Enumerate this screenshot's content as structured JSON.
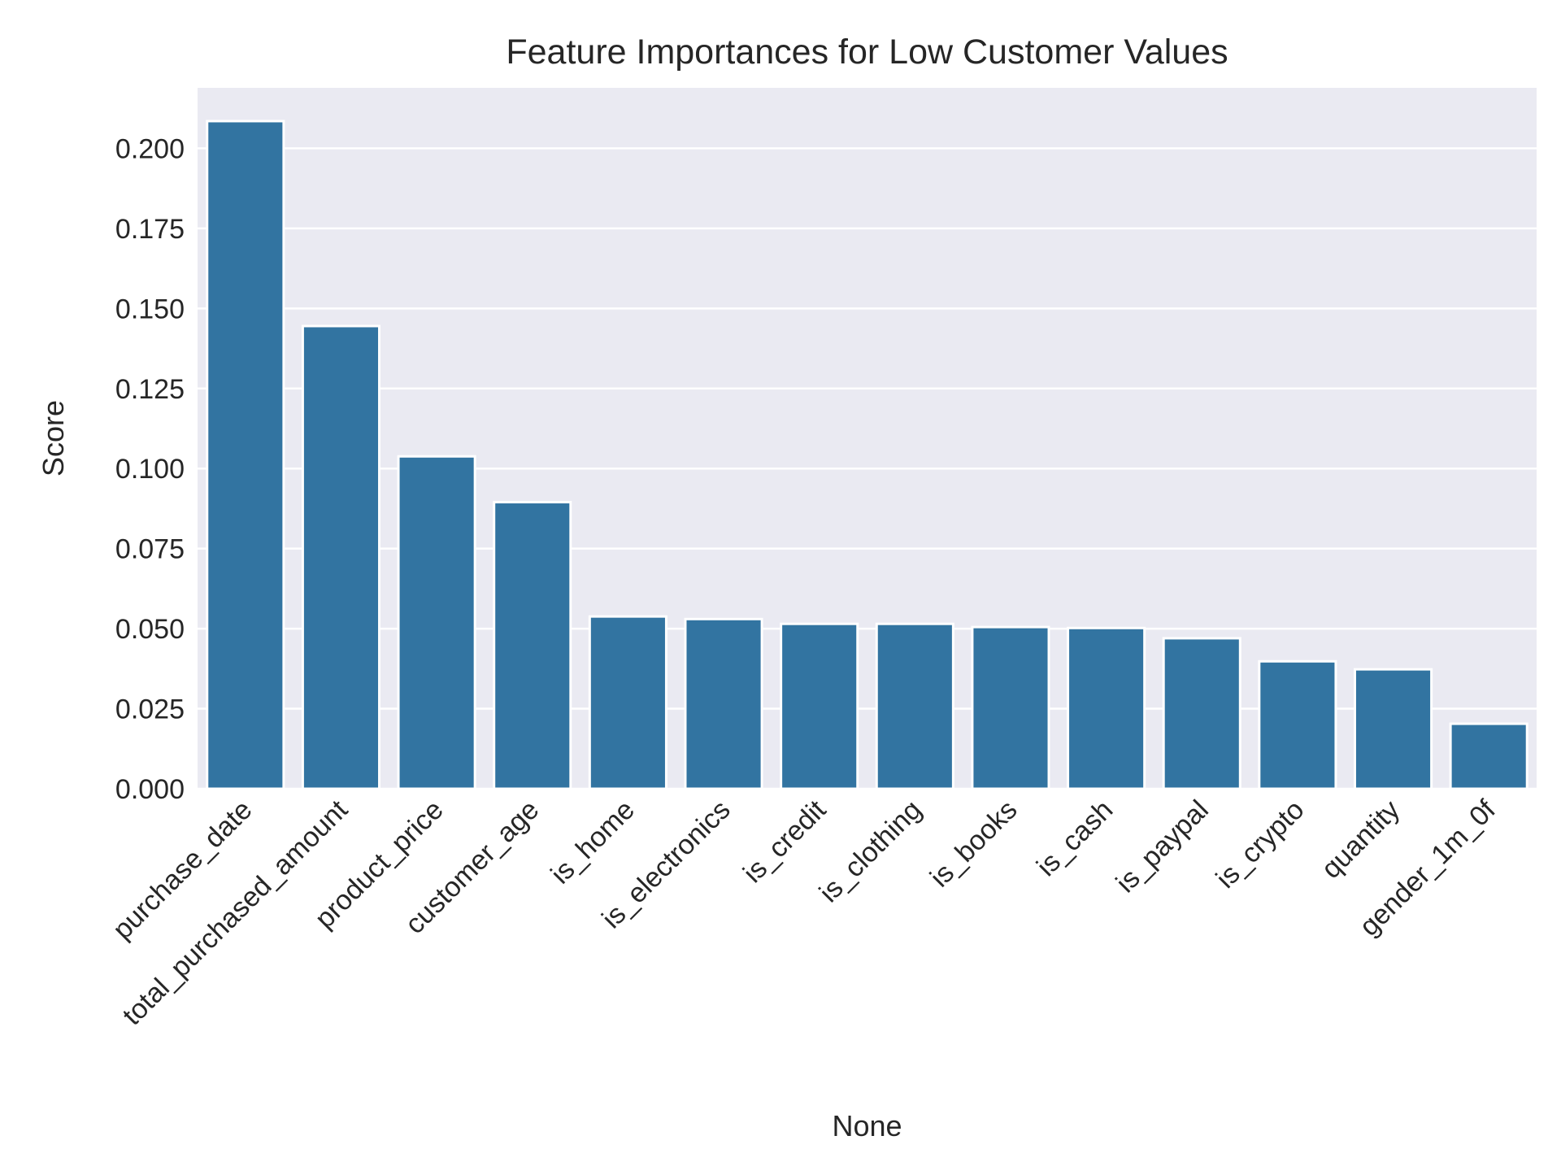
{
  "chart_data": {
    "type": "bar",
    "title": "Feature Importances for Low Customer Values",
    "xlabel": "None",
    "ylabel": "Score",
    "categories": [
      "purchase_date",
      "total_purchased_amount",
      "product_price",
      "customer_age",
      "is_home",
      "is_electronics",
      "is_credit",
      "is_clothing",
      "is_books",
      "is_cash",
      "is_paypal",
      "is_crypto",
      "quantity",
      "gender_1m_0f"
    ],
    "values": [
      0.2085,
      0.1445,
      0.1038,
      0.0895,
      0.0538,
      0.053,
      0.0515,
      0.0515,
      0.0505,
      0.0502,
      0.047,
      0.0398,
      0.0373,
      0.0203
    ],
    "yticks": [
      "0.000",
      "0.025",
      "0.050",
      "0.075",
      "0.100",
      "0.125",
      "0.150",
      "0.175",
      "0.200"
    ],
    "ylim": [
      0,
      0.2189
    ],
    "grid": true,
    "legend": "none",
    "colors": {
      "bar": "#3274a1",
      "plot_background": "#eaeaf2",
      "grid": "#ffffff",
      "text": "#262626"
    }
  }
}
